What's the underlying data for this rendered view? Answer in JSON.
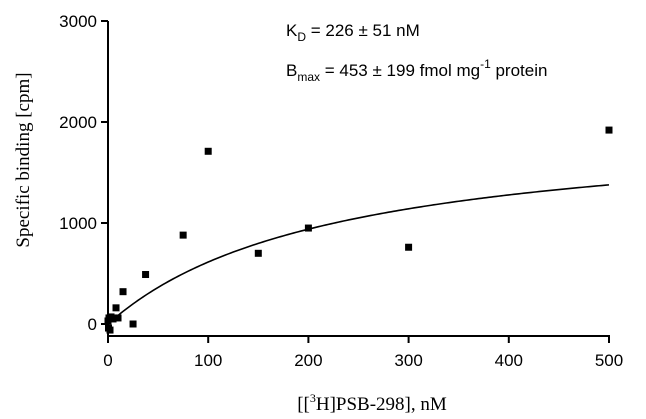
{
  "chart_data": {
    "type": "scatter",
    "xlabel": "[[³H]PSB-298], nM",
    "xlabel_parts": {
      "open": "[[",
      "sup": "3",
      "rest": "H]PSB-298], nM"
    },
    "ylabel": "Specific binding [cpm]",
    "xlim": [
      0,
      500
    ],
    "ylim": [
      0,
      3000
    ],
    "xticks": [
      0,
      100,
      200,
      300,
      400,
      500
    ],
    "yticks": [
      0,
      1000,
      2000,
      3000
    ],
    "grid": false,
    "points": [
      {
        "x": 0,
        "y": 30
      },
      {
        "x": 0.5,
        "y": -40
      },
      {
        "x": 1,
        "y": 60
      },
      {
        "x": 2,
        "y": -60
      },
      {
        "x": 3,
        "y": 70
      },
      {
        "x": 5,
        "y": 50
      },
      {
        "x": 8,
        "y": 160
      },
      {
        "x": 10,
        "y": 60
      },
      {
        "x": 15,
        "y": 320
      },
      {
        "x": 25,
        "y": 0
      },
      {
        "x": 37.5,
        "y": 490
      },
      {
        "x": 75,
        "y": 880
      },
      {
        "x": 100,
        "y": 1710
      },
      {
        "x": 150,
        "y": 700
      },
      {
        "x": 200,
        "y": 950
      },
      {
        "x": 300,
        "y": 760
      },
      {
        "x": 500,
        "y": 1920
      }
    ],
    "fit": {
      "model": "one-site saturation binding",
      "kd": 226,
      "bmax_cpm": 2000,
      "x_range": [
        0,
        500
      ]
    },
    "annotations": {
      "kd": {
        "label": "K",
        "sub": "D",
        "text": " = 226 ± 51 nM"
      },
      "bmax": {
        "label": "B",
        "sub": "max",
        "text": " = 453 ± 199 fmol mg",
        "sup": "-1",
        "tail": " protein"
      }
    }
  }
}
